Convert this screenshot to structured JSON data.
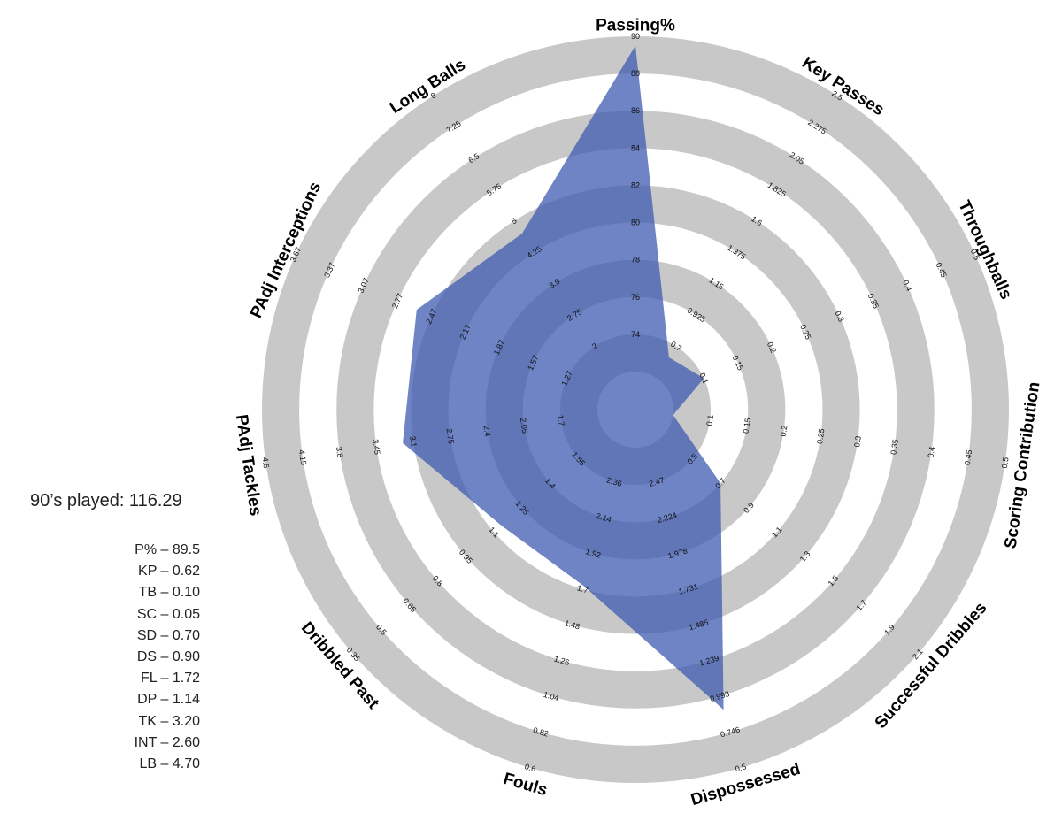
{
  "side_panel": {
    "played_label": "90’s played: 116.29",
    "stats": [
      "P% – 89.5",
      "KP – 0.62",
      "TB – 0.10",
      "SC – 0.05",
      "SD – 0.70",
      "DS – 0.90",
      "FL – 1.72",
      "DP – 1.14",
      "TK – 3.20",
      "INT – 2.60",
      "LB – 4.70"
    ]
  },
  "chart_data": {
    "type": "radar",
    "grid_bands": "alternating-gray",
    "colors": {
      "band": "#c8c8c8",
      "fill": "#3d5bb0",
      "fill_opacity": 0.75
    },
    "axes": [
      {
        "name": "Passing%",
        "ticks": [
          "74",
          "76",
          "78",
          "80",
          "82",
          "84",
          "86",
          "88",
          "90"
        ],
        "min": 72,
        "max": 90,
        "value": 89.5
      },
      {
        "name": "Key Passes",
        "ticks": [
          "0.7",
          "0.925",
          "1.15",
          "1.375",
          "1.6",
          "1.825",
          "2.05",
          "2.275",
          "2.5"
        ],
        "min": 0.475,
        "max": 2.5,
        "value": 0.62
      },
      {
        "name": "Throughballs",
        "ticks": [
          "0.1",
          "0.15",
          "0.2",
          "0.25",
          "0.3",
          "0.35",
          "0.4",
          "0.45",
          "0.5"
        ],
        "min": 0.05,
        "max": 0.5,
        "value": 0.1
      },
      {
        "name": "Scoring Contribution",
        "ticks": [
          "0.1",
          "0.15",
          "0.2",
          "0.25",
          "0.3",
          "0.35",
          "0.4",
          "0.45",
          "0.5"
        ],
        "min": 0.05,
        "max": 0.5,
        "value": 0.05
      },
      {
        "name": "Successful Dribbles",
        "ticks": [
          "0.5",
          "0.7",
          "0.9",
          "1.1",
          "1.3",
          "1.5",
          "1.7",
          "1.9",
          "2.1"
        ],
        "min": 0.3,
        "max": 2.1,
        "value": 0.7
      },
      {
        "name": "Dispossessed",
        "ticks": [
          "2.47",
          "2.224",
          "1.978",
          "1.731",
          "1.485",
          "1.239",
          "0.993",
          "0.746",
          "0.5"
        ],
        "min": 2.716,
        "max": 0.5,
        "value": 0.9
      },
      {
        "name": "Fouls",
        "ticks": [
          "2.36",
          "2.14",
          "1.92",
          "1.7",
          "1.48",
          "1.26",
          "1.04",
          "0.82",
          "0.6"
        ],
        "min": 2.58,
        "max": 0.6,
        "value": 1.72
      },
      {
        "name": "Dribbled Past",
        "ticks": [
          "1.55",
          "1.4",
          "1.25",
          "1.1",
          "0.95",
          "0.8",
          "0.65",
          "0.5",
          "0.35"
        ],
        "min": 1.7,
        "max": 0.35,
        "value": 1.14
      },
      {
        "name": "PAdj Tackles",
        "ticks": [
          "1.7",
          "2.05",
          "2.4",
          "2.75",
          "3.1",
          "3.45",
          "3.8",
          "4.15",
          "4.5"
        ],
        "min": 1.35,
        "max": 4.5,
        "value": 3.2
      },
      {
        "name": "PAdj Interceptions",
        "ticks": [
          "1.27",
          "1.57",
          "1.87",
          "2.17",
          "2.47",
          "2.77",
          "3.07",
          "3.37",
          "3.67"
        ],
        "min": 0.97,
        "max": 3.67,
        "value": 2.6
      },
      {
        "name": "Long Balls",
        "ticks": [
          "2",
          "2.75",
          "3.5",
          "4.25",
          "5",
          "5.75",
          "6.5",
          "7.25",
          "8"
        ],
        "min": 1.25,
        "max": 8,
        "value": 4.7
      }
    ]
  }
}
